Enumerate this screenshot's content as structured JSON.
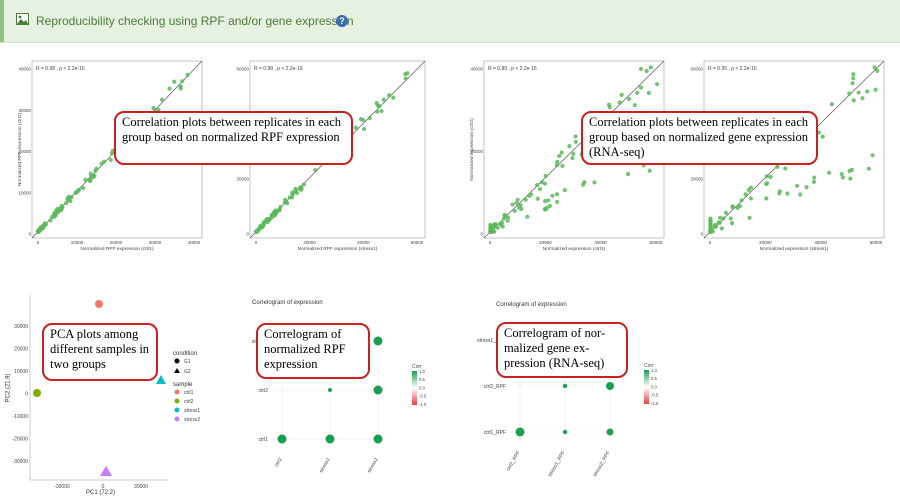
{
  "header": {
    "title": "Reproducibility checking using RPF and/or gene expression",
    "icon": "image-icon",
    "help_icon": "question-circle-icon",
    "accent": "#93c47d",
    "bg": "#e6f1e1"
  },
  "scatter_plots": [
    {
      "stat": "R = 0.98 , p < 2.2e-16",
      "xlabel": "Normalized RPF expression (ctrl1)",
      "ylabel": "Normalized RPF expression (ctrl2)",
      "xticks": [
        "0",
        "10000",
        "20000",
        "30000",
        "40000"
      ],
      "yticks": [
        "0",
        "10000",
        "20000",
        "30000",
        "40000"
      ]
    },
    {
      "stat": "R = 0.98 , p < 2.2e-16",
      "xlabel": "Normalized RPF expression (stress1)",
      "ylabel": "Normalized",
      "xticks": [
        "0",
        "20000",
        "40000",
        "60000"
      ],
      "yticks": [
        "0",
        "20000",
        "40000",
        "60000"
      ]
    },
    {
      "stat": "R = 0.89 , p < 2.2e-16",
      "xlabel": "Normalized expression (ctrl1)",
      "ylabel": "Normalized expression (ctrl2)",
      "xticks": [
        "0",
        "20000",
        "40000",
        "60000"
      ],
      "yticks": [
        "0",
        "20000",
        "40000"
      ]
    },
    {
      "stat": "R = 0.95 , p < 2.2e-16",
      "xlabel": "Normalized expression (stress1)",
      "ylabel": "",
      "xticks": [
        "0",
        "20000",
        "40000",
        "60000"
      ],
      "yticks": [
        "0",
        "20000",
        "40000",
        "60000"
      ]
    }
  ],
  "callouts": {
    "rpf_corr": "Correlation plots between replicates in each group based on normalized RPF expression",
    "gene_corr": "Correlation plots between replicates in each group based on normalized gene expression (RNA-seq)",
    "pca": "PCA plots among different samples in two groups",
    "rpf_corrgram": "Correlogram of normalized RPF expression",
    "gene_corrgram": "Correlogram of nor-malized gene ex-pression (RNA-seq)"
  },
  "pca": {
    "xlabel": "PC1 (72.2)",
    "ylabel": "PC2 (21.9)",
    "xticks": [
      "-30000",
      "0",
      "30000"
    ],
    "yticks": [
      "30000",
      "20000",
      "10000",
      "0",
      "-10000",
      "-20000",
      "-30000"
    ],
    "legend": {
      "condition_title": "condition",
      "conditions": [
        "G1",
        "G2"
      ],
      "sample_title": "sample",
      "samples": [
        {
          "name": "ctrl1",
          "color": "#f0766d"
        },
        {
          "name": "ctrl2",
          "color": "#7cae00"
        },
        {
          "name": "stress1",
          "color": "#00bfc4"
        },
        {
          "name": "stress2",
          "color": "#c77cff"
        }
      ]
    }
  },
  "corrgrams": [
    {
      "title": "Correlogram of expression",
      "rows": [
        "stress1",
        "ctrl2",
        "ctrl1"
      ],
      "cols": [
        "ctrl2",
        "stress1",
        "stress2"
      ],
      "legend_title": "Corr",
      "legend_ticks": [
        "1.0",
        "0.5",
        "0.0",
        "-0.5",
        "-1.0"
      ]
    },
    {
      "title": "Correlogram of expression",
      "rows": [
        "stress1_RPF",
        "ctrl2_RPF",
        "ctrl1_RPF"
      ],
      "cols": [
        "ctrl2_RPF",
        "stress1_RPF",
        "stress2_RPF"
      ],
      "legend_title": "Corr",
      "legend_ticks": [
        "1.0",
        "0.5",
        "0.0",
        "-0.5",
        "-1.0"
      ]
    }
  ],
  "colors": {
    "points": "#5cb85c",
    "line": "#555555",
    "callout_border": "#cc1f1f",
    "corr_high": "#1b9e50"
  }
}
